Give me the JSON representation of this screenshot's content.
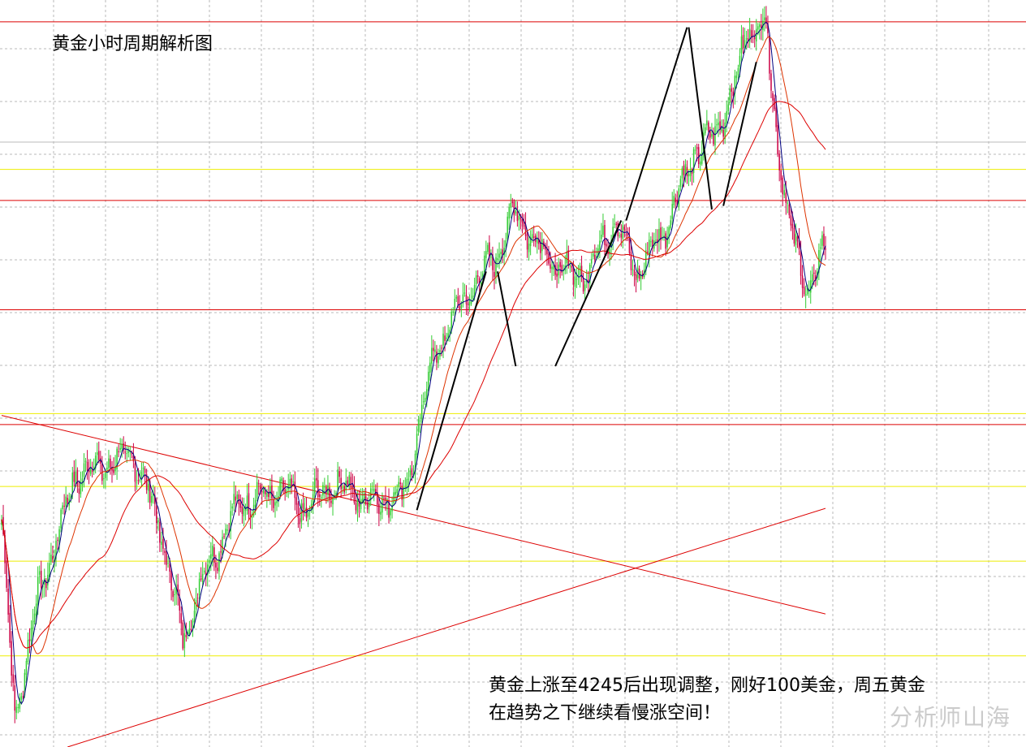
{
  "title": "黄金小时周期解析图",
  "annotation": {
    "line1": "黄金上涨至4245后出现调整，刚好100美金，周五黄金",
    "line2": "在趋势之下继续看慢涨空间！"
  },
  "watermark": "分析师山海",
  "colors": {
    "background": "#ffffff",
    "grid": "#b8b8b8",
    "bull": "#33cc33",
    "bear": "#cc0044",
    "resistance": "#dd0000",
    "support": "#eeee00",
    "ma_short": "#000080",
    "ma_mid": "#dd3300",
    "ma_long": "#dd0000",
    "trend_marker": "#000000"
  },
  "chart_data": {
    "type": "candlestick",
    "title": "黄金小时周期解析图",
    "xlabel": "",
    "ylabel": "",
    "x": [
      0,
      1,
      2,
      3,
      4,
      5,
      6,
      7,
      8,
      9,
      10,
      11,
      12,
      13,
      14,
      15,
      16,
      17,
      18,
      19,
      20,
      21,
      22,
      23,
      24,
      25,
      26,
      27,
      28,
      29,
      30,
      31,
      32,
      33,
      34,
      35,
      36,
      37,
      38,
      39,
      40,
      41,
      42,
      43,
      44,
      45,
      46,
      47,
      48,
      49,
      50,
      51,
      52,
      53,
      54,
      55,
      56,
      57,
      58,
      59,
      60,
      61,
      62,
      63,
      64,
      65,
      66,
      67,
      68,
      69,
      70,
      71,
      72,
      73,
      74,
      75,
      76,
      77,
      78,
      79,
      80,
      81,
      82,
      83,
      84,
      85,
      86,
      87,
      88,
      89,
      90,
      91,
      92,
      93,
      94,
      95,
      96,
      97,
      98,
      99,
      100,
      101,
      102,
      103,
      104,
      105,
      106,
      107,
      108,
      109,
      110,
      111,
      112,
      113,
      114,
      115,
      116,
      117,
      118,
      119,
      120,
      121,
      122,
      123,
      124,
      125,
      126,
      127,
      128,
      129,
      130,
      131,
      132,
      133,
      134,
      135,
      136,
      137,
      138,
      139,
      140,
      141,
      142,
      143,
      144,
      145,
      146,
      147,
      148,
      149,
      150,
      151,
      152,
      153,
      154,
      155,
      156,
      157,
      158,
      159,
      160,
      161,
      162,
      163,
      164,
      165,
      166,
      167,
      168,
      169,
      170,
      171,
      172,
      173,
      174,
      175,
      176,
      177,
      178,
      179,
      180,
      181,
      182,
      183,
      184,
      185,
      186,
      187,
      188,
      189,
      190,
      191,
      192,
      193,
      194,
      195,
      196,
      197,
      198,
      199,
      200,
      201,
      202,
      203,
      204,
      205,
      206,
      207,
      208,
      209,
      210,
      211,
      212,
      213,
      214,
      215,
      216,
      217,
      218,
      219,
      220,
      221,
      222,
      223,
      224,
      225,
      226,
      227,
      228,
      229,
      230,
      231,
      232,
      233,
      234,
      235,
      236,
      237,
      238,
      239,
      240,
      241,
      242,
      243,
      244,
      245,
      246,
      247,
      248,
      249,
      250,
      251,
      252,
      253,
      254,
      255,
      256,
      257,
      258,
      259,
      260,
      261,
      262,
      263,
      264,
      265,
      266,
      267,
      268,
      269,
      270,
      271,
      272,
      273,
      274,
      275,
      276,
      277,
      278,
      279,
      280,
      281,
      282,
      283,
      284,
      285,
      286,
      287,
      288,
      289,
      290,
      291,
      292,
      293,
      294,
      295,
      296,
      297,
      298,
      299,
      300,
      301,
      302,
      303,
      304,
      305,
      306,
      307,
      308,
      309,
      310,
      311,
      312,
      313,
      314,
      315,
      316,
      317,
      318,
      319,
      320,
      321,
      322,
      323,
      324,
      325,
      326,
      327,
      328,
      329,
      330,
      331,
      332,
      333,
      334,
      335,
      336,
      337,
      338,
      339,
      340,
      341,
      342,
      343,
      344,
      345,
      346,
      347,
      348,
      349,
      350,
      351,
      352,
      353,
      354,
      355,
      356,
      357,
      358,
      359,
      360,
      361,
      362,
      363,
      364,
      365,
      366,
      367,
      368,
      369,
      370,
      371,
      372,
      373,
      374,
      375,
      376,
      377,
      378,
      379,
      380,
      381,
      382,
      383,
      384,
      385,
      386,
      387,
      388,
      389,
      390,
      391,
      392,
      393,
      394,
      395,
      396,
      397,
      398,
      399,
      400,
      401,
      402,
      403,
      404,
      405,
      406,
      407,
      408,
      409,
      410,
      411,
      412,
      413,
      414,
      415,
      416,
      417,
      418,
      419,
      420,
      421,
      422,
      423,
      424,
      425,
      426,
      427,
      428,
      429,
      430,
      431,
      432,
      433,
      434,
      435,
      436,
      437,
      438,
      439,
      440,
      441,
      442,
      443,
      444,
      445,
      446,
      447,
      448,
      449,
      450,
      451,
      452,
      453,
      454,
      455,
      456,
      457,
      458,
      459,
      460,
      461,
      462,
      463,
      464,
      465,
      466,
      467,
      468,
      469,
      470,
      471,
      472,
      473,
      474,
      475,
      476,
      477,
      478,
      479,
      480,
      481,
      482,
      483,
      484,
      485,
      486,
      487,
      488,
      489,
      490,
      491,
      492,
      493,
      494,
      495,
      496,
      497,
      498,
      499,
      500
    ],
    "price_path": [
      [
        0,
        4040
      ],
      [
        8,
        3930
      ],
      [
        20,
        3990
      ],
      [
        45,
        4065
      ],
      [
        80,
        4075
      ],
      [
        95,
        4040
      ],
      [
        110,
        3975
      ],
      [
        125,
        4015
      ],
      [
        145,
        4050
      ],
      [
        170,
        4055
      ],
      [
        185,
        4045
      ],
      [
        200,
        4060
      ],
      [
        225,
        4050
      ],
      [
        245,
        4055
      ],
      [
        252,
        4085
      ],
      [
        262,
        4130
      ],
      [
        280,
        4160
      ],
      [
        300,
        4185
      ],
      [
        312,
        4210
      ],
      [
        322,
        4195
      ],
      [
        340,
        4175
      ],
      [
        355,
        4175
      ],
      [
        372,
        4205
      ],
      [
        385,
        4175
      ],
      [
        400,
        4195
      ],
      [
        420,
        4240
      ],
      [
        432,
        4250
      ],
      [
        446,
        4280
      ],
      [
        452,
        4310
      ],
      [
        464,
        4310
      ],
      [
        470,
        4255
      ],
      [
        478,
        4200
      ],
      [
        490,
        4165
      ],
      [
        500,
        4190
      ]
    ],
    "ylim": [
      3915,
      4325
    ],
    "horizontal_levels": [
      {
        "kind": "resistance",
        "value": 4313
      },
      {
        "kind": "grey",
        "value": 4247
      },
      {
        "kind": "support",
        "value": 4232
      },
      {
        "kind": "resistance",
        "value": 4215
      },
      {
        "kind": "resistance",
        "value": 4155
      },
      {
        "kind": "support",
        "value": 4098
      },
      {
        "kind": "resistance",
        "value": 4092
      },
      {
        "kind": "support",
        "value": 4058
      },
      {
        "kind": "support",
        "value": 4017
      },
      {
        "kind": "support",
        "value": 3965
      }
    ],
    "trend_lines": [
      {
        "kind": "down",
        "from": [
          0,
          4097
        ],
        "to": [
          500,
          3988
        ]
      },
      {
        "kind": "up",
        "from": [
          40,
          3915
        ],
        "to": [
          500,
          4046
        ]
      }
    ],
    "trend_markers": [
      [
        [
          252,
          4045
        ],
        [
          294,
          4176
        ]
      ],
      [
        [
          301,
          4176
        ],
        [
          312,
          4124
        ]
      ],
      [
        [
          336,
          4124
        ],
        [
          376,
          4204
        ]
      ],
      [
        [
          379,
          4204
        ],
        [
          416,
          4310
        ]
      ],
      [
        [
          417,
          4310
        ],
        [
          431,
          4210
        ]
      ],
      [
        [
          438,
          4212
        ],
        [
          458,
          4291
        ]
      ]
    ],
    "moving_averages": [
      {
        "period": 5
      },
      {
        "period": 20
      },
      {
        "period": 60
      }
    ],
    "grid": true,
    "legend": "none"
  }
}
